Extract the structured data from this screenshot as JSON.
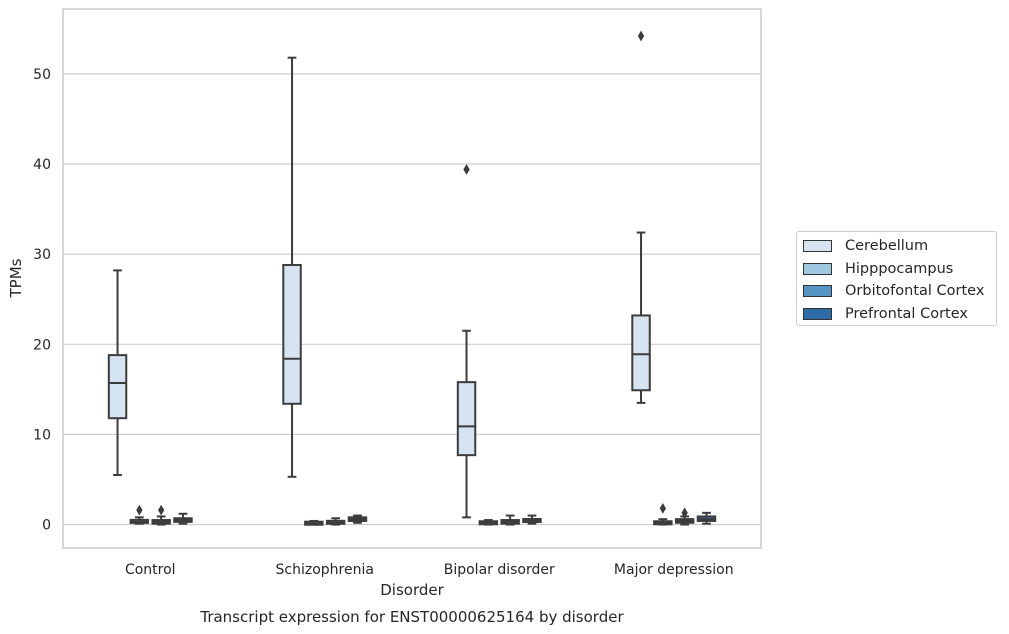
{
  "chart_data": {
    "type": "box",
    "title": "Transcript expression for ENST00000625164 by disorder",
    "xlabel": "Disorder",
    "ylabel": "TPMs",
    "ylim": [
      -2.6,
      57.2
    ],
    "yticks": [
      0,
      10,
      20,
      30,
      40,
      50
    ],
    "grid": true,
    "legend_position": "right",
    "categories": [
      "Control",
      "Schizophrenia",
      "Bipolar disorder",
      "Major depression"
    ],
    "series": [
      {
        "name": "Cerebellum",
        "color": "#d6e4f1",
        "boxes": [
          {
            "whisker_low": 5.5,
            "q1": 11.8,
            "median": 15.7,
            "q3": 18.8,
            "whisker_high": 28.2,
            "outliers": []
          },
          {
            "whisker_low": 5.3,
            "q1": 13.4,
            "median": 18.4,
            "q3": 28.8,
            "whisker_high": 51.8,
            "outliers": []
          },
          {
            "whisker_low": 0.8,
            "q1": 7.7,
            "median": 10.9,
            "q3": 15.8,
            "whisker_high": 21.5,
            "outliers": [
              39.4
            ]
          },
          {
            "whisker_low": 13.5,
            "q1": 14.9,
            "median": 18.9,
            "q3": 23.2,
            "whisker_high": 32.4,
            "outliers": [
              54.2
            ]
          }
        ]
      },
      {
        "name": "Hipppocampus",
        "color": "#9ec7e0",
        "boxes": [
          {
            "whisker_low": 0.1,
            "q1": 0.2,
            "median": 0.3,
            "q3": 0.5,
            "whisker_high": 0.8,
            "outliers": [
              1.6
            ]
          },
          {
            "whisker_low": 0.0,
            "q1": 0.1,
            "median": 0.1,
            "q3": 0.2,
            "whisker_high": 0.4,
            "outliers": []
          },
          {
            "whisker_low": 0.0,
            "q1": 0.1,
            "median": 0.2,
            "q3": 0.3,
            "whisker_high": 0.5,
            "outliers": []
          },
          {
            "whisker_low": 0.0,
            "q1": 0.1,
            "median": 0.2,
            "q3": 0.3,
            "whisker_high": 0.6,
            "outliers": [
              1.8
            ]
          }
        ]
      },
      {
        "name": "Orbitofontal Cortex",
        "color": "#5695c4",
        "boxes": [
          {
            "whisker_low": 0.0,
            "q1": 0.1,
            "median": 0.3,
            "q3": 0.5,
            "whisker_high": 0.9,
            "outliers": [
              1.6
            ]
          },
          {
            "whisker_low": 0.0,
            "q1": 0.1,
            "median": 0.2,
            "q3": 0.4,
            "whisker_high": 0.7,
            "outliers": []
          },
          {
            "whisker_low": 0.0,
            "q1": 0.1,
            "median": 0.3,
            "q3": 0.5,
            "whisker_high": 1.0,
            "outliers": []
          },
          {
            "whisker_low": 0.0,
            "q1": 0.2,
            "median": 0.4,
            "q3": 0.6,
            "whisker_high": 0.9,
            "outliers": [
              1.3
            ]
          }
        ]
      },
      {
        "name": "Prefrontal Cortex",
        "color": "#2d6ca6",
        "boxes": [
          {
            "whisker_low": 0.1,
            "q1": 0.3,
            "median": 0.5,
            "q3": 0.7,
            "whisker_high": 1.2,
            "outliers": []
          },
          {
            "whisker_low": 0.2,
            "q1": 0.4,
            "median": 0.6,
            "q3": 0.8,
            "whisker_high": 1.0,
            "outliers": []
          },
          {
            "whisker_low": 0.1,
            "q1": 0.3,
            "median": 0.4,
            "q3": 0.6,
            "whisker_high": 1.0,
            "outliers": []
          },
          {
            "whisker_low": 0.1,
            "q1": 0.4,
            "median": 0.6,
            "q3": 0.9,
            "whisker_high": 1.3,
            "outliers": []
          }
        ]
      }
    ]
  }
}
